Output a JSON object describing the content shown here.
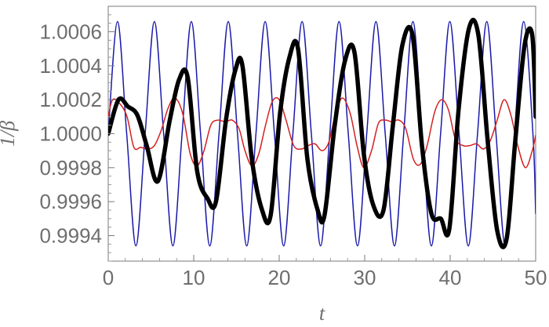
{
  "chart_data": {
    "type": "line",
    "title": "",
    "xlabel": "t",
    "ylabel": "1/β",
    "xlim": [
      0,
      50
    ],
    "ylim": [
      0.99925,
      1.00075
    ],
    "grid": false,
    "legend": "none",
    "x_ticks": [
      0,
      10,
      20,
      30,
      40,
      50
    ],
    "x_tick_labels": [
      "0",
      "10",
      "20",
      "30",
      "40",
      "50"
    ],
    "y_ticks": [
      0.9994,
      0.9996,
      0.9998,
      1.0,
      1.0002,
      1.0004,
      1.0006
    ],
    "y_tick_labels": [
      "0.9994",
      "0.9996",
      "0.9998",
      "1.0000",
      "1.0002",
      "1.0004",
      "1.0006"
    ],
    "series": [
      {
        "color": "#1a1aaa",
        "stroke": "thin",
        "x": [
          0,
          1.08,
          2.16,
          3.24,
          4.32,
          5.4,
          6.48,
          7.56,
          8.64,
          9.72,
          10.8,
          11.88,
          12.96,
          14.04,
          15.12,
          16.2,
          17.28,
          18.36,
          19.44,
          20.52,
          21.6,
          22.68,
          23.76,
          24.84,
          25.92,
          27.0,
          28.08,
          29.16,
          30.24,
          31.32,
          32.4,
          33.48,
          34.56,
          35.64,
          36.72,
          37.8,
          38.88,
          39.96,
          41.04,
          42.12,
          43.2,
          44.28,
          45.36,
          46.44,
          47.52,
          48.6,
          49.68,
          50.0
        ],
        "values": [
          1.0,
          1.00066,
          1.0,
          0.99934,
          1.0,
          1.00066,
          1.0,
          0.99934,
          1.0,
          1.00066,
          1.0,
          0.99934,
          1.0,
          1.00066,
          1.0,
          0.99934,
          1.0,
          1.00066,
          1.0,
          0.99934,
          1.0,
          1.00066,
          1.0,
          0.99934,
          1.0,
          1.00066,
          1.0,
          0.99934,
          1.0,
          1.00066,
          1.0,
          0.99934,
          1.0,
          1.00066,
          1.0,
          0.99934,
          1.0,
          1.00066,
          1.0,
          0.99934,
          1.0,
          1.00066,
          1.0,
          0.99934,
          1.0,
          1.00066,
          1.0,
          0.99953
        ]
      },
      {
        "color": "#d42020",
        "stroke": "thin",
        "x": [
          0,
          0.5,
          1.3,
          2.2,
          3.0,
          3.8,
          4.6,
          5.4,
          6.2,
          7.0,
          7.8,
          8.7,
          9.6,
          10.4,
          11.2,
          12.0,
          12.8,
          13.7,
          14.5,
          15.3,
          16.0,
          16.8,
          17.6,
          18.4,
          19.2,
          20.0,
          20.8,
          21.7,
          22.6,
          23.4,
          24.2,
          25.0,
          25.8,
          26.6,
          27.4,
          28.3,
          29.1,
          29.9,
          30.8,
          31.6,
          32.4,
          33.2,
          34.0,
          34.8,
          35.7,
          36.5,
          37.3,
          38.2,
          39.0,
          39.8,
          40.6,
          41.5,
          42.3,
          43.1,
          43.9,
          44.7,
          45.5,
          46.3,
          47.1,
          47.9,
          48.8,
          49.6,
          50.0
        ],
        "values": [
          1.0001,
          1.0002,
          1.00018,
          1.0001,
          0.99992,
          0.99992,
          0.99991,
          0.99993,
          1.00002,
          1.00015,
          1.00021,
          1.00012,
          0.99988,
          0.99981,
          0.9999,
          1.00005,
          1.00008,
          1.00007,
          1.00008,
          1.00003,
          0.9999,
          0.99981,
          0.99988,
          1.00005,
          1.00019,
          1.0002,
          1.00008,
          0.99993,
          0.99991,
          0.99993,
          0.99994,
          0.9999,
          0.99995,
          1.00012,
          1.00021,
          1.00012,
          0.99993,
          0.9998,
          0.9999,
          1.00006,
          1.00008,
          1.00007,
          1.00008,
          1.00003,
          0.99985,
          0.99982,
          0.99993,
          1.00013,
          1.0002,
          1.00014,
          0.99997,
          0.99993,
          0.99993,
          0.99994,
          0.99991,
          0.99996,
          1.00008,
          1.0002,
          1.00011,
          0.99993,
          0.9998,
          0.9999,
          0.99999
        ]
      },
      {
        "color": "#000000",
        "stroke": "thick",
        "x": [
          0,
          1.2,
          2.3,
          3.4,
          4.5,
          5.8,
          7.2,
          8.3,
          9.3,
          10.4,
          11.6,
          12.6,
          13.8,
          14.9,
          15.7,
          16.8,
          18.0,
          19.0,
          20.1,
          21.2,
          22.2,
          23.3,
          24.5,
          25.3,
          26.5,
          27.7,
          28.8,
          29.9,
          31.0,
          32.2,
          33.3,
          34.4,
          35.6,
          36.7,
          37.8,
          38.9,
          39.9,
          41.0,
          42.2,
          43.3,
          44.4,
          45.5,
          46.6,
          47.6,
          48.7,
          49.6,
          50.0
        ],
        "values": [
          1.0,
          1.0002,
          1.00016,
          1.00011,
          0.99993,
          0.99972,
          1.00008,
          1.00032,
          1.00033,
          0.99978,
          0.99962,
          0.9996,
          1.00009,
          1.00038,
          1.0004,
          0.99985,
          0.99955,
          0.99952,
          1.00012,
          1.00045,
          1.0005,
          0.99985,
          0.99955,
          0.99952,
          1.00005,
          1.00043,
          1.00048,
          0.99988,
          0.99958,
          0.99955,
          1.00005,
          1.00052,
          1.00058,
          0.99993,
          0.99953,
          0.9995,
          0.99944,
          1.00015,
          1.00062,
          1.00058,
          0.99995,
          0.99943,
          0.99938,
          0.99995,
          1.00052,
          1.00058,
          1.0001
        ]
      }
    ]
  }
}
